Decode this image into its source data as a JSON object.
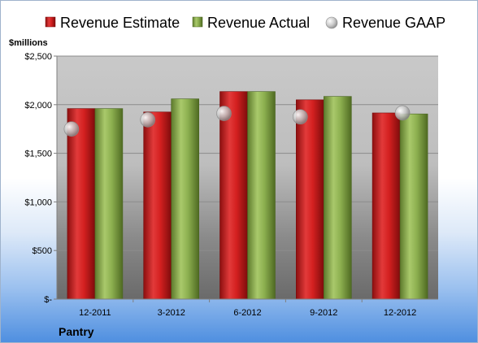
{
  "chart_data": {
    "type": "bar",
    "unit_label": "$millions",
    "company": "Pantry",
    "categories": [
      "12-2011",
      "3-2012",
      "6-2012",
      "9-2012",
      "12-2012"
    ],
    "series": [
      {
        "name": "Revenue Estimate",
        "kind": "bar",
        "color": "#d42020",
        "values": [
          1960,
          1925,
          2135,
          2050,
          1915
        ]
      },
      {
        "name": "Revenue Actual",
        "kind": "bar",
        "color": "#8db050",
        "values": [
          1960,
          2060,
          2135,
          2085,
          1905
        ]
      },
      {
        "name": "Revenue GAAP",
        "kind": "point",
        "color": "#c8c8c8",
        "values": [
          1750,
          1845,
          1910,
          1875,
          1915
        ]
      }
    ],
    "y_ticks": [
      {
        "value": 0,
        "label": "$-"
      },
      {
        "value": 500,
        "label": "$500"
      },
      {
        "value": 1000,
        "label": "$1,000"
      },
      {
        "value": 1500,
        "label": "$1,500"
      },
      {
        "value": 2000,
        "label": "$2,000"
      },
      {
        "value": 2500,
        "label": "$2,500"
      }
    ],
    "ylim": [
      0,
      2500
    ],
    "grid": true,
    "legend_position": "top"
  }
}
